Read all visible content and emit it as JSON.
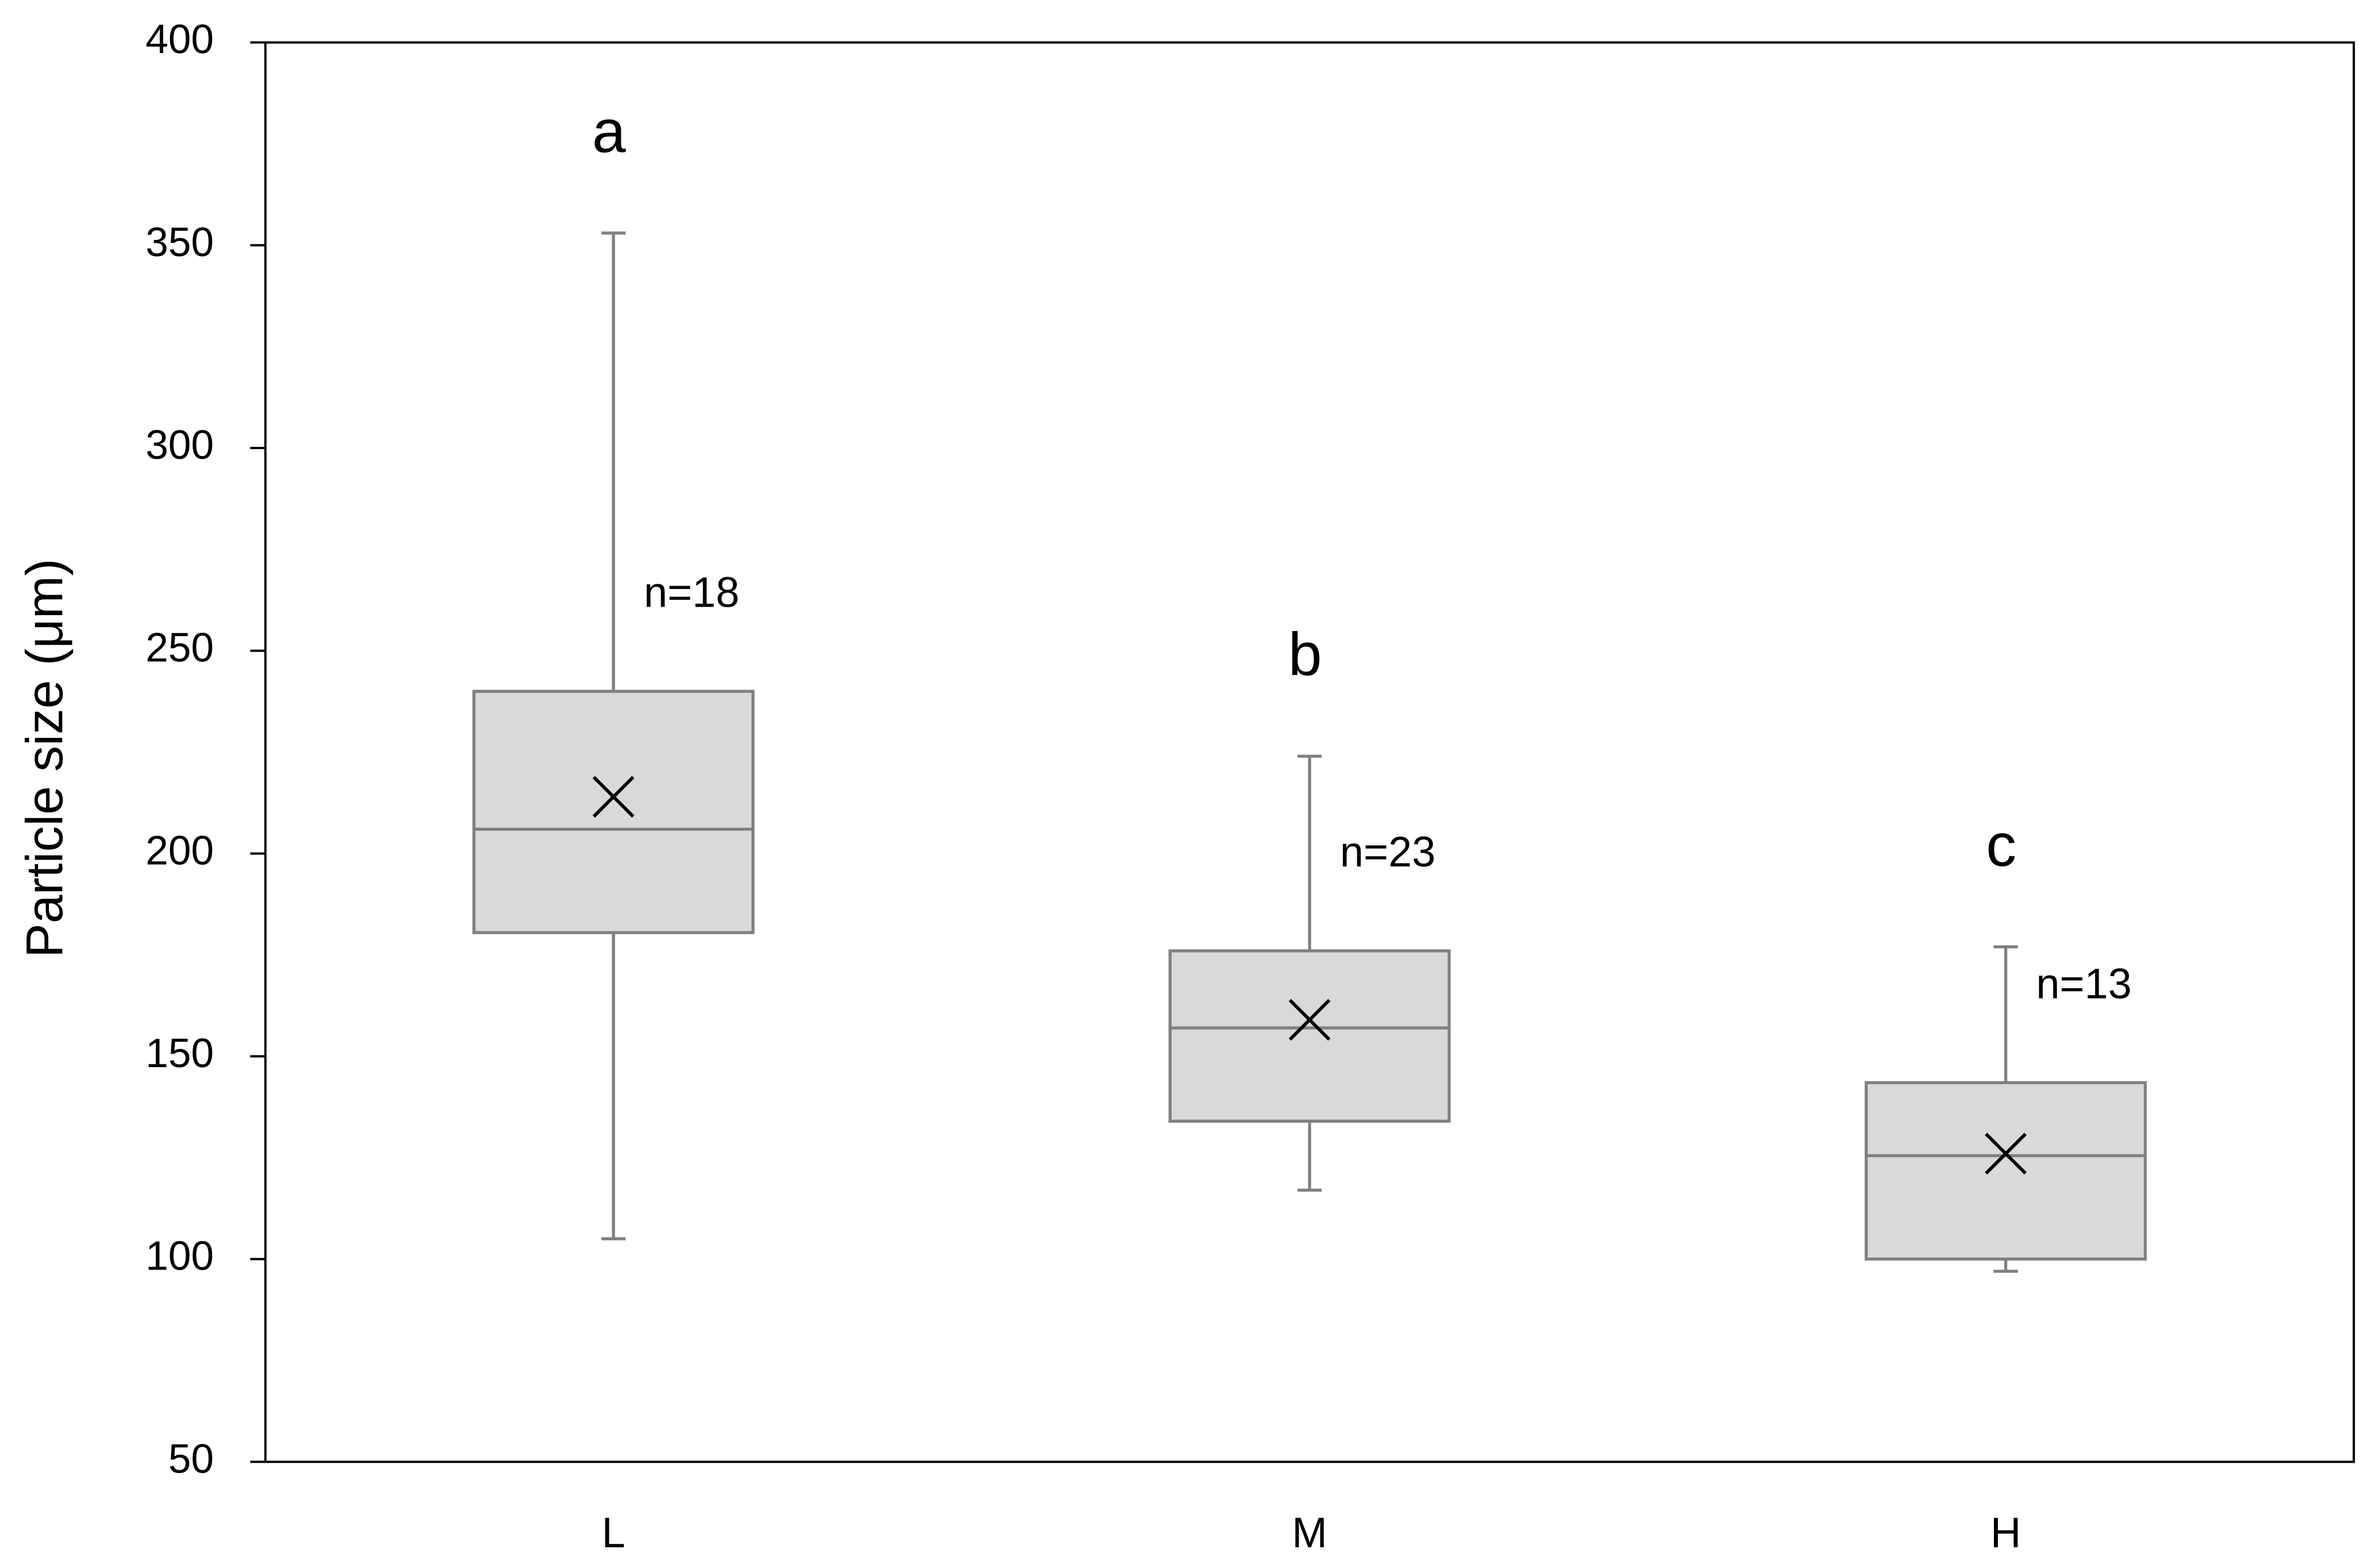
{
  "chart_data": {
    "type": "box",
    "y_label": "Particle size (μm)",
    "categories": [
      "L",
      "M",
      "H"
    ],
    "min": [
      105,
      117,
      97
    ],
    "q1": [
      180.5,
      134,
      100
    ],
    "median": [
      206,
      157,
      125.5
    ],
    "q3": [
      240,
      176,
      143.5
    ],
    "max": [
      353,
      224,
      177
    ],
    "mean": [
      214,
      159,
      126
    ],
    "group_letters": [
      "a",
      "b",
      "c"
    ],
    "n_labels": [
      "n=18",
      "n=23",
      "n=13"
    ],
    "ylim": [
      50,
      400
    ],
    "yticks": [
      50,
      100,
      150,
      200,
      250,
      300,
      350,
      400
    ],
    "grid": false,
    "box_fill": "#d9d9d9",
    "box_stroke": "#808080",
    "mean_color": "#000000"
  }
}
